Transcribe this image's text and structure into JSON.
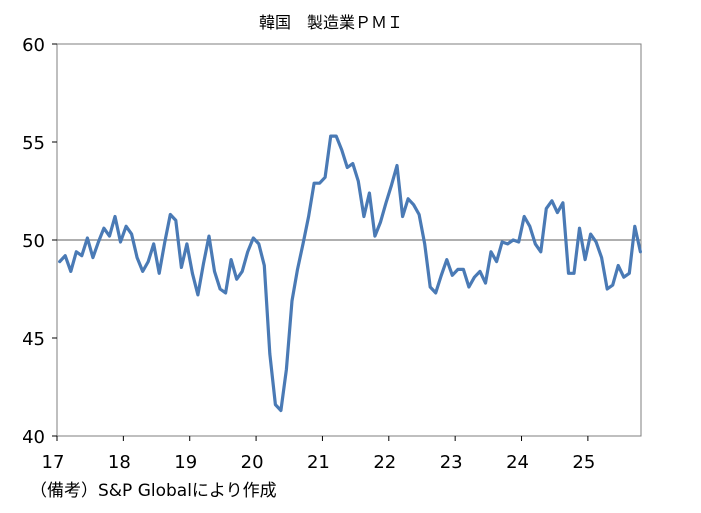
{
  "chart_data": {
    "type": "line",
    "title": "韓国　製造業ＰＭＩ",
    "xlabel": "",
    "ylabel": "",
    "ylim": [
      40,
      60
    ],
    "yticks": [
      "60",
      "55",
      "50",
      "45",
      "40"
    ],
    "reference_line": 50,
    "x_start": "2017-01",
    "x_tick_labels": [
      "17",
      "18",
      "19",
      "20",
      "21",
      "22",
      "23",
      "24",
      "25"
    ],
    "series": [
      {
        "name": "韓国 製造業PMI",
        "color": "#4a7ab5",
        "values": [
          48.9,
          49.2,
          48.4,
          49.4,
          49.2,
          50.1,
          49.1,
          49.9,
          50.6,
          50.2,
          51.2,
          49.9,
          50.7,
          50.3,
          49.1,
          48.4,
          48.9,
          49.8,
          48.3,
          49.9,
          51.3,
          51.0,
          48.6,
          49.8,
          48.3,
          47.2,
          48.8,
          50.2,
          48.4,
          47.5,
          47.3,
          49.0,
          48.0,
          48.4,
          49.4,
          50.1,
          49.8,
          48.7,
          44.2,
          41.6,
          41.3,
          43.4,
          46.9,
          48.5,
          49.8,
          51.2,
          52.9,
          52.9,
          53.2,
          55.3,
          55.3,
          54.6,
          53.7,
          53.9,
          53.0,
          51.2,
          52.4,
          50.2,
          50.9,
          51.9,
          52.8,
          53.8,
          51.2,
          52.1,
          51.8,
          51.3,
          49.8,
          47.6,
          47.3,
          48.2,
          49.0,
          48.2,
          48.5,
          48.5,
          47.6,
          48.1,
          48.4,
          47.8,
          49.4,
          48.9,
          49.9,
          49.8,
          50.0,
          49.9,
          51.2,
          50.7,
          49.8,
          49.4,
          51.6,
          52.0,
          51.4,
          51.9,
          48.3,
          48.3,
          50.6,
          49.0,
          50.3,
          49.9,
          49.1,
          47.5,
          47.7,
          48.7,
          48.1,
          48.3,
          50.7,
          49.4
        ]
      }
    ]
  },
  "footnote": "（備考）S&P Globalにより作成"
}
